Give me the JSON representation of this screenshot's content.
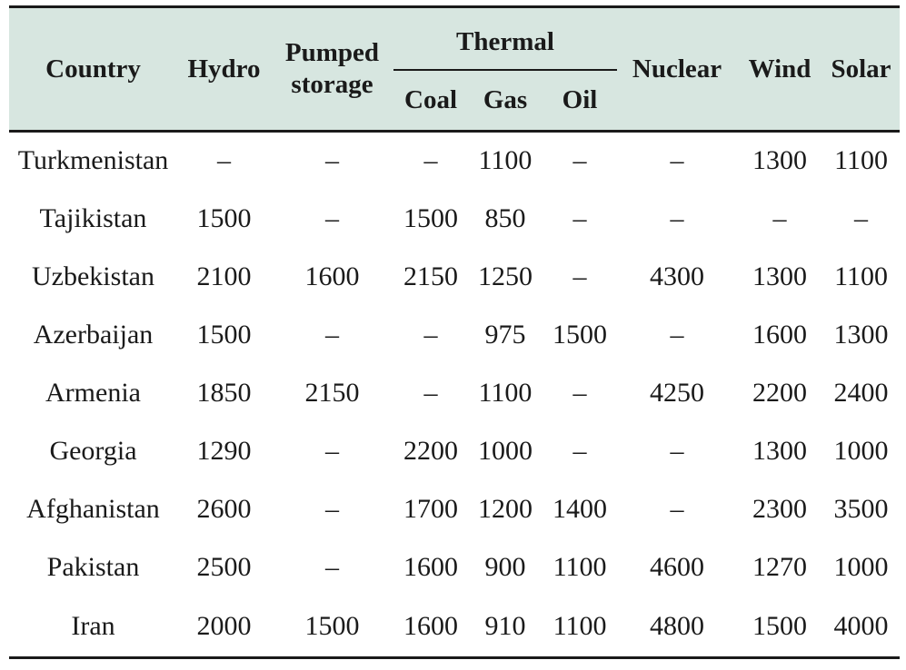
{
  "table": {
    "headers": {
      "country": "Country",
      "hydro": "Hydro",
      "pumped_line1": "Pumped",
      "pumped_line2": "storage",
      "thermal": "Thermal",
      "coal": "Coal",
      "gas": "Gas",
      "oil": "Oil",
      "nuclear": "Nuclear",
      "wind": "Wind",
      "solar": "Solar"
    },
    "rows": [
      [
        "Turkmenistan",
        "–",
        "–",
        "–",
        "1100",
        "–",
        "–",
        "1300",
        "1100"
      ],
      [
        "Tajikistan",
        "1500",
        "–",
        "1500",
        "850",
        "–",
        "–",
        "–",
        "–"
      ],
      [
        "Uzbekistan",
        "2100",
        "1600",
        "2150",
        "1250",
        "–",
        "4300",
        "1300",
        "1100"
      ],
      [
        "Azerbaijan",
        "1500",
        "–",
        "–",
        "975",
        "1500",
        "–",
        "1600",
        "1300"
      ],
      [
        "Armenia",
        "1850",
        "2150",
        "–",
        "1100",
        "–",
        "4250",
        "2200",
        "2400"
      ],
      [
        "Georgia",
        "1290",
        "–",
        "2200",
        "1000",
        "–",
        "–",
        "1300",
        "1000"
      ],
      [
        "Afghanistan",
        "2600",
        "–",
        "1700",
        "1200",
        "1400",
        "–",
        "2300",
        "3500"
      ],
      [
        "Pakistan",
        "2500",
        "–",
        "1600",
        "900",
        "1100",
        "4600",
        "1270",
        "1000"
      ],
      [
        "Iran",
        "2000",
        "1500",
        "1600",
        "910",
        "1100",
        "4800",
        "1500",
        "4000"
      ]
    ],
    "header_bg": "#d7e6e0"
  }
}
